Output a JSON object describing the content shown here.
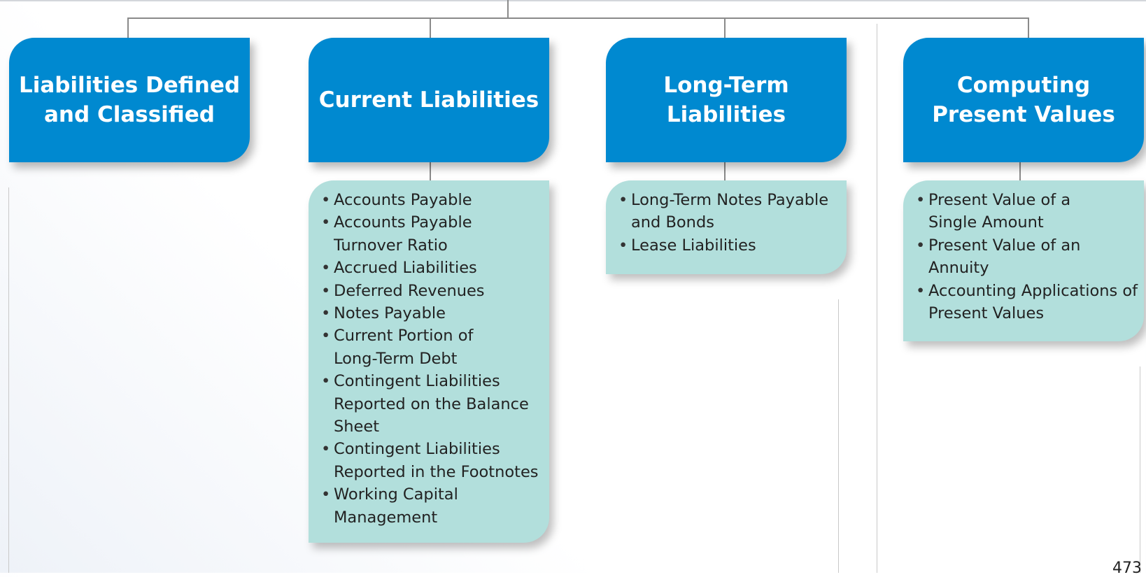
{
  "categories": [
    {
      "title": "Liabilities Defined and Classified",
      "items": []
    },
    {
      "title": "Current Liabilities",
      "items": [
        "Accounts Payable",
        "Accounts Payable Turnover Ratio",
        "Accrued Liabilities",
        "Deferred Revenues",
        "Notes Payable",
        "Current Portion of Long-Term Debt",
        "Contingent Liabilities Reported on the Balance Sheet",
        "Contingent Liabilities Reported in the Footnotes",
        "Working Capital Management"
      ]
    },
    {
      "title": "Long-Term Liabilities",
      "items": [
        "Long-Term Notes Payable and Bonds",
        "Lease Liabilities"
      ]
    },
    {
      "title": "Computing Present Values",
      "items": [
        "Present Value of a Single Amount",
        "Present Value of an Annuity",
        "Accounting Applications of Present Values"
      ]
    }
  ],
  "page_number": "473",
  "colors": {
    "category_fill": "#0089d0",
    "subtopic_fill": "#b2dfdc",
    "connector": "#8a8a8a"
  }
}
